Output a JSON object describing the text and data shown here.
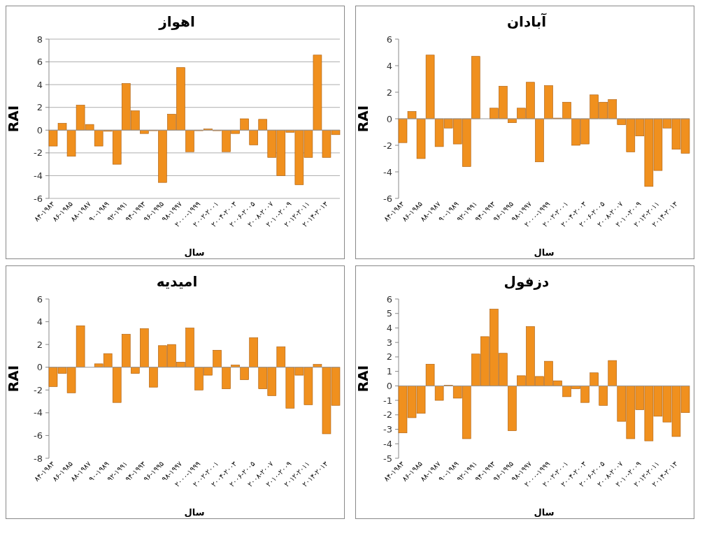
{
  "chart_data": [
    {
      "type": "bar",
      "title": "اهواز",
      "xlabel": "سال",
      "ylabel": "RAI",
      "categories": [
        "۸۴-۱۹۸۳",
        null,
        "۸۶-۱۹۸۵",
        null,
        "۸۸-۱۹۸۷",
        null,
        "۹۰-۱۹۸۹",
        null,
        "۹۲-۱۹۹۱",
        null,
        "۹۴-۱۹۹۳",
        null,
        "۹۶-۱۹۹۵",
        null,
        "۹۸-۱۹۹۷",
        null,
        "۲۰۰۰-۱۹۹۹",
        null,
        "۲۰۰۲-۲۰۰۱",
        null,
        "۲۰۰۴-۲۰۰۳",
        null,
        "۲۰۰۶-۲۰۰۵",
        null,
        "۲۰۰۸-۲۰۰۷",
        null,
        "۲۰۱۰-۲۰۰۹",
        null,
        "۲۰۱۲-۲۰۱۱",
        null,
        "۲۰۱۴-۲۰۱۳",
        null
      ],
      "values": [
        -1.4,
        0.6,
        -2.3,
        2.2,
        0.5,
        -1.4,
        -0.1,
        -3.0,
        4.1,
        1.7,
        -0.3,
        -0.05,
        -4.6,
        1.4,
        5.5,
        -1.9,
        -0.05,
        0.1,
        -0.05,
        -1.9,
        -0.3,
        1.0,
        -1.3,
        0.95,
        -2.4,
        -4.0,
        -0.2,
        -4.8,
        -2.4,
        6.6,
        -2.4,
        -0.4
      ],
      "color": "#f0901e",
      "ylim": [
        -6,
        8
      ],
      "yticks": [
        -6,
        -4,
        -2,
        0,
        2,
        4,
        6,
        8
      ],
      "grid": "y"
    },
    {
      "type": "bar",
      "title": "آبادان",
      "xlabel": "سال",
      "ylabel": "RAI",
      "categories": [
        "۸۴-۱۹۸۳",
        null,
        "۸۶-۱۹۸۵",
        null,
        "۸۸-۱۹۸۷",
        null,
        "۹۰-۱۹۸۹",
        null,
        "۹۲-۱۹۹۱",
        null,
        "۹۴-۱۹۹۳",
        null,
        "۹۶-۱۹۹۵",
        null,
        "۹۸-۱۹۹۷",
        null,
        "۲۰۰۰-۱۹۹۹",
        null,
        "۲۰۰۲-۲۰۰۱",
        null,
        "۲۰۰۴-۲۰۰۳",
        null,
        "۲۰۰۶-۲۰۰۵",
        null,
        "۲۰۰۸-۲۰۰۷",
        null,
        "۲۰۱۰-۲۰۰۹",
        null,
        "۲۰۱۲-۲۰۱۱",
        null,
        "۲۰۱۴-۲۰۱۳",
        null
      ],
      "values": [
        -1.8,
        0.55,
        -3.0,
        4.8,
        -2.1,
        -0.7,
        -1.9,
        -3.6,
        4.7,
        null,
        0.8,
        2.45,
        -0.3,
        0.8,
        2.75,
        -3.25,
        2.5,
        0.05,
        1.25,
        -2.0,
        -1.9,
        1.8,
        1.25,
        1.45,
        -0.45,
        -2.5,
        -1.3,
        -5.1,
        -3.9,
        -0.7,
        -2.3,
        -2.6
      ],
      "color": "#f0901e",
      "ylim": [
        -6,
        6
      ],
      "yticks": [
        -6,
        -4,
        -2,
        0,
        2,
        4,
        6
      ]
    },
    {
      "type": "bar",
      "title": "امیدیه",
      "xlabel": "سال",
      "ylabel": "RAI",
      "categories": [
        "۸۴-۱۹۸۳",
        null,
        "۸۶-۱۹۸۵",
        null,
        "۸۸-۱۹۸۷",
        null,
        "۹۰-۱۹۸۹",
        null,
        "۹۲-۱۹۹۱",
        null,
        "۹۴-۱۹۹۳",
        null,
        "۹۶-۱۹۹۵",
        null,
        "۹۸-۱۹۹۷",
        null,
        "۲۰۰۰-۱۹۹۹",
        null,
        "۲۰۰۲-۲۰۰۱",
        null,
        "۲۰۰۴-۲۰۰۳",
        null,
        "۲۰۰۶-۲۰۰۵",
        null,
        "۲۰۰۸-۲۰۰۷",
        null,
        "۲۰۱۰-۲۰۰۹",
        null,
        "۲۰۱۲-۲۰۱۱",
        null,
        "۲۰۱۴-۲۰۱۳",
        null
      ],
      "values": [
        -1.7,
        -0.55,
        -2.25,
        3.65,
        0,
        0.3,
        1.2,
        -3.1,
        2.9,
        -0.55,
        3.4,
        -1.75,
        1.9,
        2.0,
        0.45,
        3.45,
        -2.0,
        -0.7,
        1.5,
        -1.9,
        0.2,
        -1.1,
        2.6,
        -1.9,
        -2.5,
        1.8,
        -3.6,
        -0.7,
        -3.3,
        0.25,
        -5.85,
        -3.35
      ],
      "color": "#f0901e",
      "ylim": [
        -8,
        6
      ],
      "yticks": [
        -8,
        -6,
        -4,
        -2,
        0,
        2,
        4,
        6
      ]
    },
    {
      "type": "bar",
      "title": "دزفول",
      "xlabel": "سال",
      "ylabel": "RAI",
      "categories": [
        "۸۴-۱۹۸۳",
        null,
        "۸۶-۱۹۸۵",
        null,
        "۸۸-۱۹۸۷",
        null,
        "۹۰-۱۹۸۹",
        null,
        "۹۲-۱۹۹۱",
        null,
        "۹۴-۱۹۹۳",
        null,
        "۹۶-۱۹۹۵",
        null,
        "۹۸-۱۹۹۷",
        null,
        "۲۰۰۰-۱۹۹۹",
        null,
        "۲۰۰۲-۲۰۰۱",
        null,
        "۲۰۰۴-۲۰۰۳",
        null,
        "۲۰۰۶-۲۰۰۵",
        null,
        "۲۰۰۸-۲۰۰۷",
        null,
        "۲۰۱۰-۲۰۰۹",
        null,
        "۲۰۱۲-۲۰۱۱",
        null,
        "۲۰۱۴-۲۰۱۳",
        null
      ],
      "values": [
        -3.25,
        -2.2,
        -1.9,
        1.5,
        -1.0,
        0.05,
        -0.85,
        -3.65,
        2.2,
        3.4,
        5.3,
        2.25,
        -3.1,
        0.7,
        4.1,
        0.65,
        1.7,
        0.35,
        -0.75,
        -0.2,
        -1.15,
        0.9,
        -1.35,
        1.75,
        -2.45,
        -3.65,
        -1.65,
        -3.8,
        -2.1,
        -2.5,
        -3.5,
        -1.85
      ],
      "color": "#f0901e",
      "ylim": [
        -5,
        6
      ],
      "yticks": [
        -5,
        -4,
        -3,
        -2,
        -1,
        0,
        1,
        2,
        3,
        4,
        5,
        6
      ]
    }
  ]
}
